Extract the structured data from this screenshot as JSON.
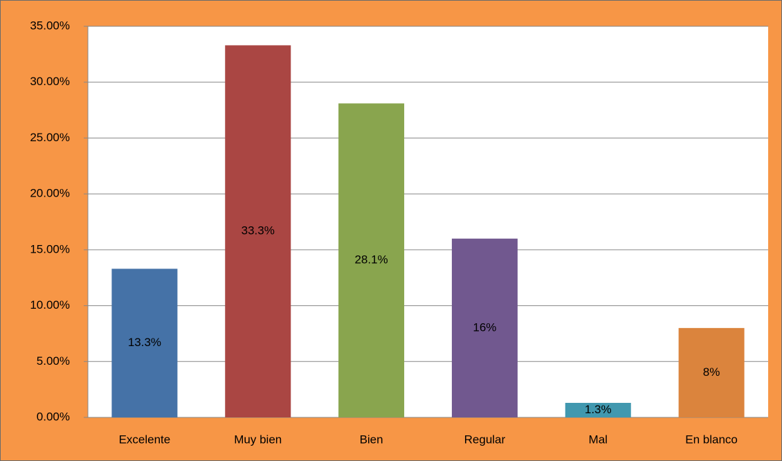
{
  "chart_data": {
    "type": "bar",
    "categories": [
      "Excelente",
      "Muy bien",
      "Bien",
      "Regular",
      "Mal",
      "En blanco"
    ],
    "values": [
      13.3,
      33.3,
      28.1,
      16,
      1.3,
      8
    ],
    "value_labels": [
      "13.3%",
      "33.3%",
      "28.1%",
      "16%",
      "1.3%",
      "8%"
    ],
    "colors": [
      "#4572a7",
      "#aa4643",
      "#89a54e",
      "#71588f",
      "#4198af",
      "#db843d"
    ],
    "ylim": [
      0,
      35
    ],
    "yticks": [
      {
        "value": 0,
        "label": "0.00%"
      },
      {
        "value": 5,
        "label": "5.00%"
      },
      {
        "value": 10,
        "label": "10.00%"
      },
      {
        "value": 15,
        "label": "15.00%"
      },
      {
        "value": 20,
        "label": "20.00%"
      },
      {
        "value": 25,
        "label": "25.00%"
      },
      {
        "value": 30,
        "label": "30.00%"
      },
      {
        "value": 35,
        "label": "35.00%"
      }
    ],
    "grid": true
  }
}
